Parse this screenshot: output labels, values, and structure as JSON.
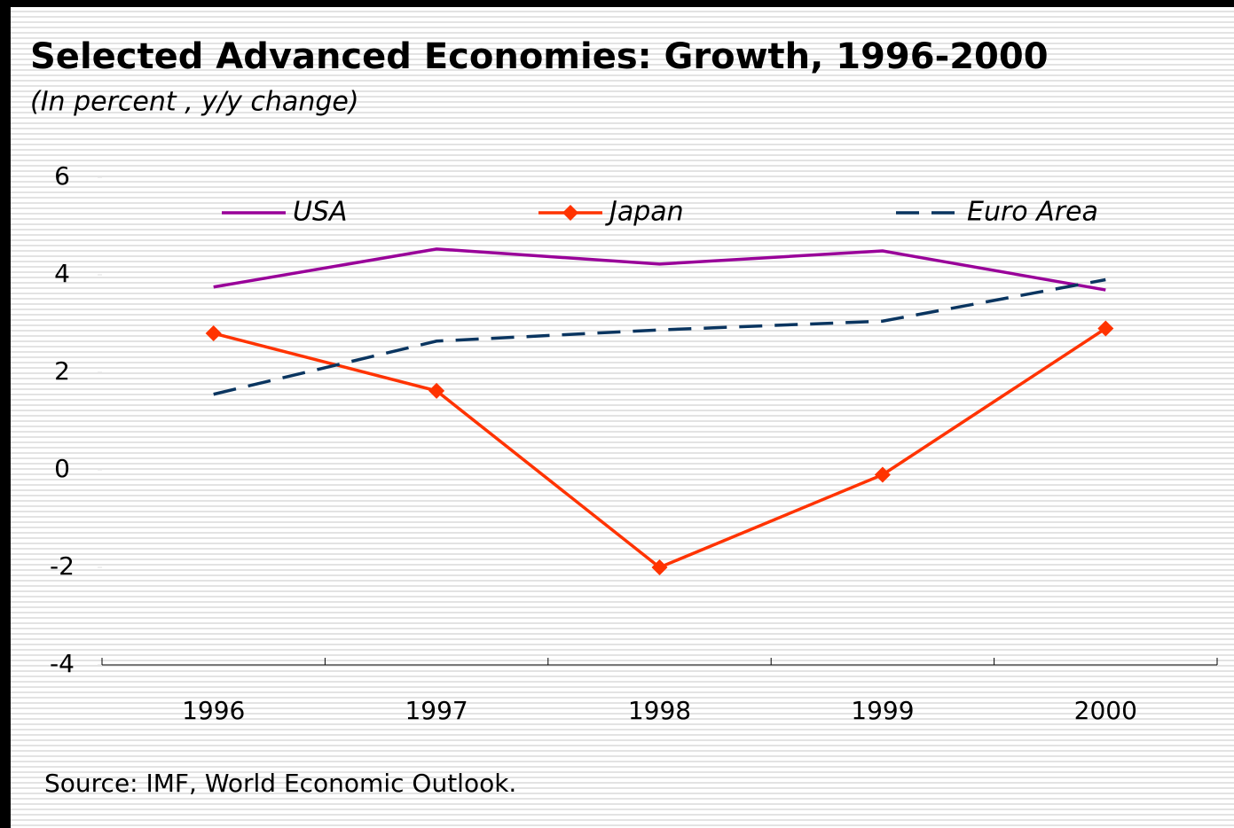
{
  "chart_data": {
    "type": "line",
    "title": "Selected Advanced Economies: Growth, 1996-2000",
    "subtitle": "(In percent , y/y change)",
    "source": "Source: IMF, World Economic Outlook.",
    "categories": [
      "1996",
      "1997",
      "1998",
      "1999",
      "2000"
    ],
    "series": [
      {
        "name": "USA",
        "color": "#990099",
        "style": "solid",
        "marker": "none",
        "values": [
          3.75,
          4.53,
          4.22,
          4.49,
          3.69
        ]
      },
      {
        "name": "Japan",
        "color": "#ff3300",
        "style": "solid",
        "marker": "diamond",
        "values": [
          2.8,
          1.62,
          -2.0,
          -0.1,
          2.9
        ]
      },
      {
        "name": "Euro Area",
        "color": "#0a3560",
        "style": "dashed",
        "marker": "none",
        "values": [
          1.55,
          2.64,
          2.87,
          3.05,
          3.9
        ]
      }
    ],
    "ylim": [
      -4,
      6
    ],
    "yticks": [
      -4,
      -2,
      0,
      2,
      4,
      6
    ],
    "legend": "top"
  }
}
